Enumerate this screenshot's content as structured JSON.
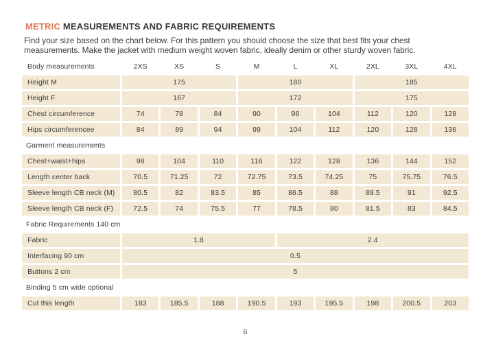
{
  "header": {
    "title_accent": "METRIC",
    "title_rest": " MEASUREMENTS AND FABRIC REQUIREMENTS",
    "intro_lines": [
      "Find your size based on the chart below. For this pattern you should choose the size that best fits your chest",
      "measurements. Make the jacket with medium weight woven fabric, ideally denim or other sturdy woven fabric."
    ]
  },
  "colors": {
    "accent_orange": "#DF7A55",
    "table_cell_beige": "#F2E8D3",
    "body_text": "#3C3C3C"
  },
  "table": {
    "rows": [
      {
        "type": "header",
        "label": "Body measurements",
        "sizes": [
          "2XS",
          "XS",
          "S",
          "M",
          "L",
          "XL",
          "2XL",
          "3XL",
          "4XL"
        ]
      },
      {
        "type": "data",
        "label": "Height M",
        "cells": [
          {
            "span": 3,
            "value": "175"
          },
          {
            "span": 3,
            "value": "180"
          },
          {
            "span": 3,
            "value": "185"
          }
        ]
      },
      {
        "type": "data",
        "label": "Height F",
        "cells": [
          {
            "span": 3,
            "value": "167"
          },
          {
            "span": 3,
            "value": "172"
          },
          {
            "span": 3,
            "value": "175"
          }
        ]
      },
      {
        "type": "data",
        "label": "Chest circumference",
        "cells": [
          {
            "span": 1,
            "value": "74"
          },
          {
            "span": 1,
            "value": "78"
          },
          {
            "span": 1,
            "value": "84"
          },
          {
            "span": 1,
            "value": "90"
          },
          {
            "span": 1,
            "value": "96"
          },
          {
            "span": 1,
            "value": "104"
          },
          {
            "span": 1,
            "value": "112"
          },
          {
            "span": 1,
            "value": "120"
          },
          {
            "span": 1,
            "value": "128"
          }
        ]
      },
      {
        "type": "data",
        "label": "Hips circumferencee",
        "cells": [
          {
            "span": 1,
            "value": "84"
          },
          {
            "span": 1,
            "value": "89"
          },
          {
            "span": 1,
            "value": "94"
          },
          {
            "span": 1,
            "value": "99"
          },
          {
            "span": 1,
            "value": "104"
          },
          {
            "span": 1,
            "value": "112"
          },
          {
            "span": 1,
            "value": "120"
          },
          {
            "span": 1,
            "value": "128"
          },
          {
            "span": 1,
            "value": "136"
          }
        ]
      },
      {
        "type": "section",
        "label": "Garment measurements"
      },
      {
        "type": "data",
        "label": "Chest+waist+hips",
        "cells": [
          {
            "span": 1,
            "value": "98"
          },
          {
            "span": 1,
            "value": "104"
          },
          {
            "span": 1,
            "value": "110"
          },
          {
            "span": 1,
            "value": "116"
          },
          {
            "span": 1,
            "value": "122"
          },
          {
            "span": 1,
            "value": "128"
          },
          {
            "span": 1,
            "value": "136"
          },
          {
            "span": 1,
            "value": "144"
          },
          {
            "span": 1,
            "value": "152"
          }
        ]
      },
      {
        "type": "data",
        "label": "Length center back",
        "cells": [
          {
            "span": 1,
            "value": "70.5"
          },
          {
            "span": 1,
            "value": "71.25"
          },
          {
            "span": 1,
            "value": "72"
          },
          {
            "span": 1,
            "value": "72.75"
          },
          {
            "span": 1,
            "value": "73.5"
          },
          {
            "span": 1,
            "value": "74.25"
          },
          {
            "span": 1,
            "value": "75"
          },
          {
            "span": 1,
            "value": "75.75"
          },
          {
            "span": 1,
            "value": "76.5"
          }
        ]
      },
      {
        "type": "data",
        "label": "Sleeve length CB neck (M)",
        "cells": [
          {
            "span": 1,
            "value": "80.5"
          },
          {
            "span": 1,
            "value": "82"
          },
          {
            "span": 1,
            "value": "83.5"
          },
          {
            "span": 1,
            "value": "85"
          },
          {
            "span": 1,
            "value": "86.5"
          },
          {
            "span": 1,
            "value": "88"
          },
          {
            "span": 1,
            "value": "89.5"
          },
          {
            "span": 1,
            "value": "91"
          },
          {
            "span": 1,
            "value": "92.5"
          }
        ]
      },
      {
        "type": "data",
        "label": "Sleeve length CB neck (F)",
        "cells": [
          {
            "span": 1,
            "value": "72.5"
          },
          {
            "span": 1,
            "value": "74"
          },
          {
            "span": 1,
            "value": "75.5"
          },
          {
            "span": 1,
            "value": "77"
          },
          {
            "span": 1,
            "value": "78.5"
          },
          {
            "span": 1,
            "value": "80"
          },
          {
            "span": 1,
            "value": "81.5"
          },
          {
            "span": 1,
            "value": "83"
          },
          {
            "span": 1,
            "value": "84.5"
          }
        ]
      },
      {
        "type": "section",
        "label": "Fabric Requirements 140 cm"
      },
      {
        "type": "data",
        "label": "Fabric",
        "cells": [
          {
            "span": 4,
            "value": "1.8"
          },
          {
            "span": 5,
            "value": "2.4"
          }
        ]
      },
      {
        "type": "data",
        "label": "Interfacing 90 cm",
        "cells": [
          {
            "span": 9,
            "value": "0.5"
          }
        ]
      },
      {
        "type": "data",
        "label": "Buttons 2 cm",
        "cells": [
          {
            "span": 9,
            "value": "5"
          }
        ]
      },
      {
        "type": "section",
        "label": "Binding 5 cm wide optional"
      },
      {
        "type": "data",
        "label": "Cut this length",
        "cells": [
          {
            "span": 1,
            "value": "183"
          },
          {
            "span": 1,
            "value": "185.5"
          },
          {
            "span": 1,
            "value": "188"
          },
          {
            "span": 1,
            "value": "190.5"
          },
          {
            "span": 1,
            "value": "193"
          },
          {
            "span": 1,
            "value": "195.5"
          },
          {
            "span": 1,
            "value": "198"
          },
          {
            "span": 1,
            "value": "200.5"
          },
          {
            "span": 1,
            "value": "203"
          }
        ]
      }
    ]
  },
  "footer": {
    "page_number": "6"
  }
}
